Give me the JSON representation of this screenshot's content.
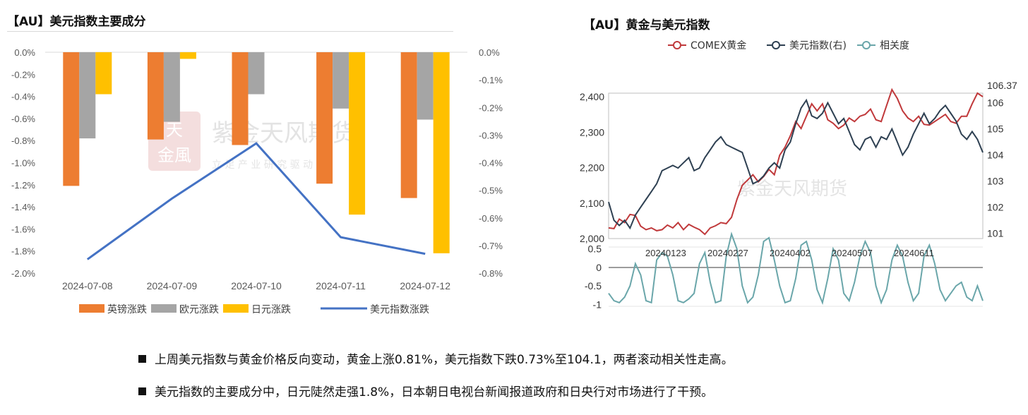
{
  "left_panel": {
    "title": "【AU】美元指数主要成分"
  },
  "right_panel": {
    "title": "【AU】黄金与美元指数"
  },
  "watermark": {
    "text": "紫金天风期货",
    "sub": "立 足 产 业   研 究 驱 动",
    "seal": "天金風"
  },
  "colors": {
    "gbp": "#ED7D31",
    "eur": "#A5A5A5",
    "jpy": "#FFC000",
    "usd": "#4472C4",
    "gold": "#C0393B",
    "dxy": "#2E4052",
    "corr": "#6AA6AA"
  },
  "chart_data": [
    {
      "type": "bar",
      "title": "",
      "categories": [
        "2024-07-08",
        "2024-07-09",
        "2024-07-10",
        "2024-07-11",
        "2024-07-12"
      ],
      "ylim_left": [
        -2.0,
        0.0
      ],
      "left_ticks": [
        "0.0%",
        "-0.2%",
        "-0.4%",
        "-0.6%",
        "-0.8%",
        "-1.0%",
        "-1.2%",
        "-1.4%",
        "-1.6%",
        "-1.8%",
        "-2.0%"
      ],
      "ylim_right": [
        -0.8,
        0.0
      ],
      "right_ticks": [
        "0.0%",
        "-0.1%",
        "-0.2%",
        "-0.3%",
        "-0.4%",
        "-0.5%",
        "-0.6%",
        "-0.7%",
        "-0.8%"
      ],
      "series": [
        {
          "name": "英镑涨跌",
          "axis": "left",
          "type": "bar",
          "values": [
            -1.21,
            -0.79,
            -0.84,
            -1.19,
            -1.32
          ]
        },
        {
          "name": "欧元涨跌",
          "axis": "left",
          "type": "bar",
          "values": [
            -0.78,
            -0.63,
            -0.38,
            -0.51,
            -0.61
          ]
        },
        {
          "name": "日元涨跌",
          "axis": "left",
          "type": "bar",
          "values": [
            -0.38,
            -0.06,
            0,
            -1.47,
            -1.82
          ]
        },
        {
          "name": "美元指数涨跌",
          "axis": "right",
          "type": "line",
          "values": [
            -0.75,
            -0.53,
            -0.33,
            -0.67,
            -0.73
          ]
        }
      ],
      "legend_position": "bottom"
    },
    {
      "type": "line",
      "title": "",
      "legend": [
        "COMEX黄金",
        "美元指数(右)",
        "相关度"
      ],
      "legend_position": "top",
      "x_ticks": [
        "20240123",
        "20240227",
        "20240402",
        "20240507",
        "20240611"
      ],
      "left_axis": {
        "ticks": [
          "2,400",
          "2,300",
          "2,200",
          "2,100",
          "2,000"
        ],
        "ylim": [
          2000,
          2410
        ]
      },
      "right_axis": {
        "ticks": [
          "106.37",
          "106",
          "105",
          "104",
          "103",
          "102",
          "101"
        ],
        "ylim": [
          100.8,
          106.37
        ]
      },
      "corr_axis": {
        "ticks": [
          "0.5",
          "0",
          "-0.5",
          "-1"
        ],
        "ylim": [
          -1.05,
          0.55
        ]
      },
      "gold": [
        2030,
        2028,
        2055,
        2045,
        2068,
        2065,
        2035,
        2025,
        2030,
        2022,
        2025,
        2038,
        2030,
        2045,
        2025,
        2040,
        2032,
        2025,
        2012,
        2030,
        2036,
        2045,
        2042,
        2060,
        2110,
        2150,
        2165,
        2180,
        2160,
        2175,
        2195,
        2180,
        2235,
        2258,
        2290,
        2330,
        2310,
        2345,
        2380,
        2360,
        2380,
        2335,
        2325,
        2310,
        2320,
        2340,
        2330,
        2345,
        2350,
        2365,
        2335,
        2330,
        2375,
        2420,
        2395,
        2360,
        2340,
        2330,
        2345,
        2322,
        2320,
        2330,
        2340,
        2350,
        2330,
        2325,
        2345,
        2345,
        2380,
        2410,
        2400
      ],
      "dxy": [
        102.2,
        101.5,
        101.3,
        101.5,
        101.2,
        101.7,
        102.0,
        102.3,
        102.6,
        102.9,
        103.4,
        103.5,
        103.6,
        103.5,
        103.7,
        103.9,
        103.4,
        103.5,
        103.9,
        104.2,
        104.5,
        104.7,
        104.4,
        104.3,
        104.2,
        104.1,
        103.5,
        102.9,
        103.0,
        103.2,
        103.5,
        103.7,
        103.5,
        104.2,
        104.5,
        105.2,
        105.8,
        106.1,
        105.5,
        105.4,
        105.6,
        106.0,
        105.6,
        105.2,
        105.4,
        104.9,
        104.4,
        104.2,
        104.6,
        104.7,
        104.3,
        104.7,
        104.6,
        105.0,
        104.5,
        104.0,
        104.3,
        104.8,
        105.2,
        105.6,
        105.2,
        105.4,
        105.7,
        105.9,
        105.6,
        105.3,
        104.8,
        104.6,
        104.9,
        104.6,
        104.1
      ],
      "correlation": [
        -0.7,
        -0.9,
        -0.95,
        -0.8,
        -0.5,
        0.1,
        -0.2,
        -0.9,
        -0.95,
        0.2,
        0.4,
        0.3,
        -0.2,
        -0.9,
        -0.95,
        -0.85,
        -0.7,
        0.1,
        0.4,
        -0.4,
        -0.95,
        -0.9,
        0.3,
        0.9,
        0.5,
        -0.5,
        -0.95,
        -0.8,
        -0.2,
        0.7,
        0.8,
        0.2,
        -0.5,
        -0.95,
        -0.9,
        -0.3,
        0.6,
        0.7,
        0.2,
        -0.6,
        -0.95,
        -0.3,
        0.5,
        0.2,
        -0.7,
        -0.9,
        -0.4,
        0.3,
        0.7,
        0.4,
        -0.5,
        -0.95,
        -0.6,
        0.2,
        0.6,
        0.3,
        -0.4,
        -0.9,
        -0.7,
        0.3,
        0.6,
        0.1,
        -0.6,
        -0.9,
        -0.7,
        -0.5,
        -0.4,
        -0.8,
        -0.9,
        -0.5,
        -0.9
      ]
    }
  ],
  "bullets": [
    "上周美元指数与黄金价格反向变动，黄金上涨0.81%，美元指数下跌0.73%至104.1，两者滚动相关性走高。",
    "美元指数的主要成分中，日元陡然走强1.8%，日本朝日电视台新闻报道政府和日央行对市场进行了干预。"
  ]
}
